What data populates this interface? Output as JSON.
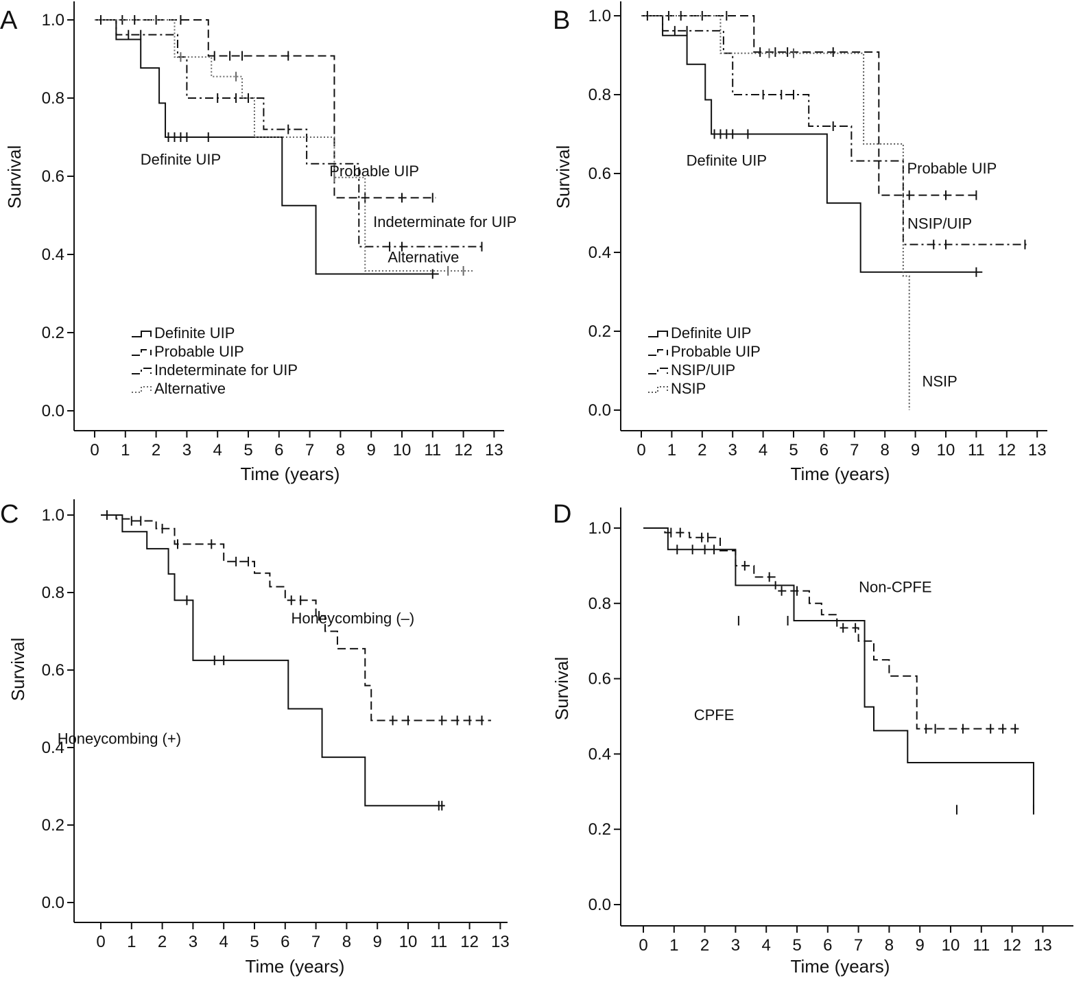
{
  "chart_data": [
    {
      "type": "line",
      "panel": "A",
      "xlabel": "Time (years)",
      "ylabel": "Survival",
      "xlim": [
        0,
        13
      ],
      "ylim": [
        0,
        1
      ],
      "x_ticks": [
        "0",
        "1",
        "2",
        "3",
        "4",
        "5",
        "6",
        "7",
        "8",
        "9",
        "10",
        "11",
        "12",
        "13"
      ],
      "y_ticks": [
        "0.0",
        "0.2",
        "0.4",
        "0.6",
        "0.8",
        "1.0"
      ],
      "legend": [
        "Definite UIP",
        "Probable UIP",
        "Indeterminate for UIP",
        "Alternative"
      ],
      "legend_position": "bottom-left",
      "annotations": [
        {
          "text": "Definite UIP",
          "x": 2.8,
          "y": 0.63
        },
        {
          "text": "Probable UIP",
          "x": 9.1,
          "y": 0.6
        },
        {
          "text": "Indeterminate for UIP",
          "x": 11.4,
          "y": 0.47
        },
        {
          "text": "Alternative",
          "x": 10.7,
          "y": 0.38
        }
      ],
      "series": [
        {
          "name": "Definite UIP",
          "dash": "solid",
          "color": "#111111",
          "x": [
            0,
            0.7,
            1.5,
            2.1,
            2.3,
            6.1,
            7.2,
            11.2
          ],
          "y": [
            1.0,
            0.95,
            0.877,
            0.787,
            0.7,
            0.525,
            0.35,
            0.35
          ],
          "censor_x": [
            2.4,
            2.6,
            2.8,
            3.0,
            3.7,
            11.0
          ],
          "censor_y": [
            0.7,
            0.7,
            0.7,
            0.7,
            0.7,
            0.35
          ]
        },
        {
          "name": "Probable UIP",
          "dash": "dash",
          "color": "#111111",
          "x": [
            0,
            3.7,
            7.2,
            7.8,
            11.1
          ],
          "y": [
            1.0,
            0.908,
            0.908,
            0.545,
            0.545
          ],
          "censor_x": [
            0.2,
            0.9,
            1.3,
            2.0,
            2.8,
            3.9,
            4.4,
            4.8,
            6.3,
            8.8,
            10.0,
            11.0
          ],
          "censor_y": [
            1.0,
            1.0,
            1.0,
            1.0,
            1.0,
            0.908,
            0.908,
            0.908,
            0.908,
            0.545,
            0.545,
            0.545
          ]
        },
        {
          "name": "Indeterminate for UIP",
          "dash": "dashdot",
          "color": "#111111",
          "x": [
            0,
            0.7,
            1.5,
            2.7,
            3.0,
            5.5,
            6.9,
            7.5,
            8.6,
            12.7
          ],
          "y": [
            1.0,
            0.962,
            0.962,
            0.905,
            0.8,
            0.72,
            0.632,
            0.632,
            0.42,
            0.42
          ],
          "censor_x": [
            1.1,
            1.5,
            4.0,
            4.6,
            5.0,
            6.3,
            9.6,
            10.0,
            12.6
          ],
          "censor_y": [
            0.962,
            0.962,
            0.8,
            0.8,
            0.8,
            0.72,
            0.42,
            0.42,
            0.42
          ]
        },
        {
          "name": "Alternative",
          "dash": "dot",
          "color": "#666666",
          "x": [
            0,
            2.6,
            3.8,
            4.8,
            5.2,
            7.8,
            8.8,
            12.3
          ],
          "y": [
            1.0,
            0.905,
            0.855,
            0.8,
            0.7,
            0.597,
            0.358,
            0.358
          ],
          "censor_x": [
            2.8,
            4.6,
            7.8,
            11.5,
            12.0
          ],
          "censor_y": [
            0.905,
            0.855,
            0.597,
            0.358,
            0.358
          ]
        }
      ]
    },
    {
      "type": "line",
      "panel": "B",
      "xlabel": "Time (years)",
      "ylabel": "Survival",
      "xlim": [
        0,
        13
      ],
      "ylim": [
        0,
        1
      ],
      "x_ticks": [
        "0",
        "1",
        "2",
        "3",
        "4",
        "5",
        "6",
        "7",
        "8",
        "9",
        "10",
        "11",
        "12",
        "13"
      ],
      "y_ticks": [
        "0.0",
        "0.2",
        "0.4",
        "0.6",
        "0.8",
        "1.0"
      ],
      "legend": [
        "Definite UIP",
        "Probable UIP",
        "NSIP/UIP",
        "NSIP"
      ],
      "legend_position": "bottom-left",
      "annotations": [
        {
          "text": "Definite UIP",
          "x": 2.8,
          "y": 0.62
        },
        {
          "text": "Probable UIP",
          "x": 10.2,
          "y": 0.6
        },
        {
          "text": "NSIP/UIP",
          "x": 9.8,
          "y": 0.46
        },
        {
          "text": "NSIP",
          "x": 9.8,
          "y": 0.06
        }
      ],
      "series": [
        {
          "name": "Definite UIP",
          "dash": "solid",
          "color": "#111111",
          "x": [
            0,
            0.7,
            1.5,
            2.1,
            2.3,
            6.1,
            7.2,
            11.2
          ],
          "y": [
            1.0,
            0.95,
            0.877,
            0.787,
            0.7,
            0.525,
            0.35,
            0.35
          ],
          "censor_x": [
            2.4,
            2.6,
            2.8,
            3.0,
            3.5,
            11.0
          ],
          "censor_y": [
            0.7,
            0.7,
            0.7,
            0.7,
            0.7,
            0.35
          ]
        },
        {
          "name": "Probable UIP",
          "dash": "dash",
          "color": "#111111",
          "x": [
            0,
            3.7,
            7.2,
            7.8,
            11.1
          ],
          "y": [
            1.0,
            0.908,
            0.908,
            0.545,
            0.545
          ],
          "censor_x": [
            0.2,
            0.9,
            1.3,
            2.0,
            2.8,
            3.9,
            4.4,
            4.8,
            6.3,
            8.8,
            10.0,
            11.0
          ],
          "censor_y": [
            1.0,
            1.0,
            1.0,
            1.0,
            1.0,
            0.908,
            0.908,
            0.908,
            0.908,
            0.545,
            0.545,
            0.545
          ]
        },
        {
          "name": "NSIP/UIP",
          "dash": "dashdot",
          "color": "#111111",
          "x": [
            0,
            0.7,
            1.5,
            2.7,
            3.0,
            5.5,
            6.9,
            7.5,
            8.6,
            12.7
          ],
          "y": [
            1.0,
            0.962,
            0.962,
            0.905,
            0.8,
            0.72,
            0.632,
            0.632,
            0.42,
            0.42
          ],
          "censor_x": [
            1.1,
            1.5,
            4.0,
            4.6,
            5.0,
            6.3,
            9.6,
            10.0,
            12.6
          ],
          "censor_y": [
            0.962,
            0.962,
            0.8,
            0.8,
            0.8,
            0.72,
            0.42,
            0.42,
            0.42
          ]
        },
        {
          "name": "NSIP",
          "dash": "dot",
          "color": "#555555",
          "x": [
            0,
            2.6,
            7.3,
            8.6,
            8.8,
            8.8
          ],
          "y": [
            1.0,
            0.905,
            0.675,
            0.34,
            0.34,
            0.0
          ],
          "censor_x": [
            4.2,
            5.0
          ],
          "censor_y": [
            0.905,
            0.905
          ]
        }
      ]
    },
    {
      "type": "line",
      "panel": "C",
      "xlabel": "Time (years)",
      "ylabel": "Survival",
      "xlim": [
        0,
        13
      ],
      "ylim": [
        0,
        1
      ],
      "x_ticks": [
        "0",
        "1",
        "2",
        "3",
        "4",
        "5",
        "6",
        "7",
        "8",
        "9",
        "10",
        "11",
        "12",
        "13"
      ],
      "y_ticks": [
        "0.0",
        "0.2",
        "0.4",
        "0.6",
        "0.8",
        "1.0"
      ],
      "legend": [],
      "annotations": [
        {
          "text": "Honeycombing (–)",
          "x": 8.2,
          "y": 0.72
        },
        {
          "text": "Honeycombing (+)",
          "x": 0.6,
          "y": 0.41
        }
      ],
      "series": [
        {
          "name": "Honeycombing (+)",
          "dash": "solid",
          "color": "#111111",
          "x": [
            0,
            0.7,
            1.5,
            2.2,
            2.4,
            3.0,
            6.1,
            7.2,
            8.6,
            11.2
          ],
          "y": [
            1.0,
            0.957,
            0.913,
            0.848,
            0.78,
            0.625,
            0.5,
            0.375,
            0.25,
            0.25
          ],
          "censor_x": [
            0.2,
            2.8,
            3.7,
            4.0,
            11.0,
            11.1
          ],
          "censor_y": [
            1.0,
            0.78,
            0.625,
            0.625,
            0.25,
            0.25
          ]
        },
        {
          "name": "Honeycombing (–)",
          "dash": "dash",
          "color": "#111111",
          "x": [
            0,
            0.5,
            1.0,
            1.8,
            2.4,
            3.2,
            4.0,
            5.0,
            5.5,
            6.0,
            7.0,
            7.3,
            7.7,
            8.6,
            8.8,
            12.7
          ],
          "y": [
            1.0,
            0.99,
            0.985,
            0.965,
            0.925,
            0.925,
            0.88,
            0.85,
            0.815,
            0.78,
            0.74,
            0.7,
            0.655,
            0.56,
            0.47,
            0.47
          ],
          "censor_x": [
            1.0,
            1.3,
            2.0,
            2.5,
            3.6,
            4.4,
            4.8,
            6.2,
            6.5,
            7.1,
            9.5,
            10.0,
            11.1,
            11.6,
            12.0,
            12.4
          ],
          "censor_y": [
            0.985,
            0.985,
            0.965,
            0.925,
            0.925,
            0.88,
            0.88,
            0.78,
            0.78,
            0.74,
            0.47,
            0.47,
            0.47,
            0.47,
            0.47,
            0.47
          ]
        }
      ]
    },
    {
      "type": "line",
      "panel": "D",
      "xlabel": "Time (years)",
      "ylabel": "Survival",
      "xlim": [
        0,
        13
      ],
      "ylim": [
        0,
        1
      ],
      "x_ticks": [
        "0",
        "1",
        "2",
        "3",
        "4",
        "5",
        "6",
        "7",
        "8",
        "9",
        "10",
        "11",
        "12",
        "13"
      ],
      "y_ticks": [
        "0.0",
        "0.2",
        "0.4",
        "0.6",
        "0.8",
        "1.0"
      ],
      "legend": [],
      "annotations": [
        {
          "text": "Non-CPFE",
          "x": 8.2,
          "y": 0.83
        },
        {
          "text": "CPFE",
          "x": 2.3,
          "y": 0.49
        }
      ],
      "series": [
        {
          "name": "CPFE",
          "dash": "solid",
          "color": "#111111",
          "x": [
            0,
            0.8,
            2.7,
            3.0,
            4.9,
            7.2,
            7.2,
            7.5,
            8.6,
            12.7
          ],
          "y": [
            1.0,
            0.943,
            0.943,
            0.848,
            0.754,
            0.63,
            0.525,
            0.462,
            0.377,
            0.252
          ],
          "censor_x": [
            1.1,
            1.6,
            2.0,
            2.3,
            3.1,
            4.7,
            10.2,
            12.7
          ],
          "censor_y": [
            0.943,
            0.943,
            0.943,
            0.943,
            0.754,
            0.754,
            0.252,
            0.252
          ]
        },
        {
          "name": "Non-CPFE",
          "dash": "dash",
          "color": "#111111",
          "x": [
            0,
            0.7,
            1.5,
            2.5,
            3.0,
            3.6,
            4.3,
            5.4,
            5.8,
            6.3,
            7.0,
            7.5,
            8.0,
            8.9,
            12.3
          ],
          "y": [
            1.0,
            0.988,
            0.975,
            0.94,
            0.9,
            0.87,
            0.833,
            0.8,
            0.77,
            0.735,
            0.7,
            0.65,
            0.607,
            0.467,
            0.467
          ],
          "censor_x": [
            0.9,
            1.2,
            1.9,
            2.1,
            3.3,
            4.1,
            4.5,
            5.0,
            6.5,
            6.9,
            9.2,
            9.5,
            10.4,
            11.3,
            11.7,
            12.1
          ],
          "censor_y": [
            0.988,
            0.988,
            0.975,
            0.975,
            0.9,
            0.87,
            0.833,
            0.833,
            0.735,
            0.735,
            0.467,
            0.467,
            0.467,
            0.467,
            0.467,
            0.467
          ]
        }
      ]
    }
  ]
}
